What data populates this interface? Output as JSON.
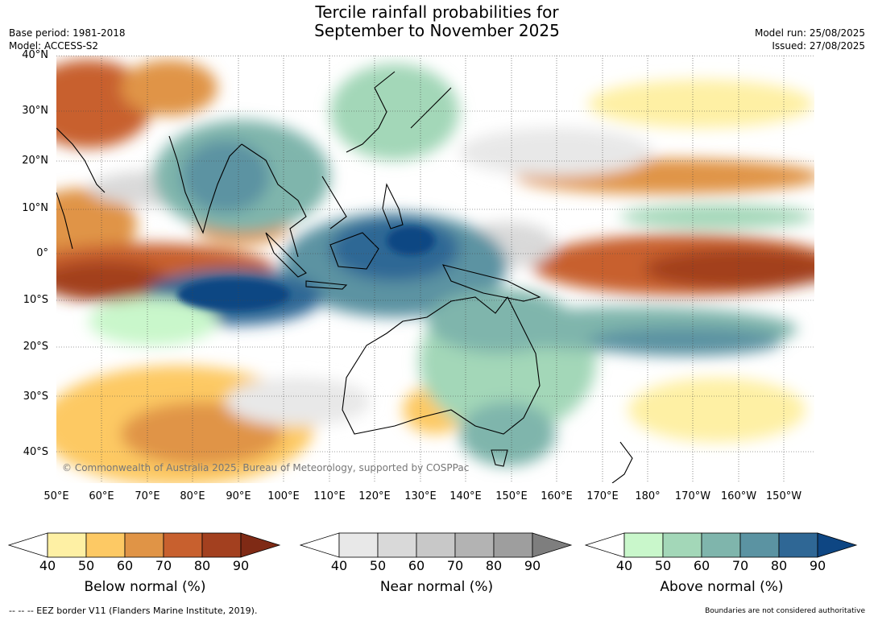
{
  "title": {
    "line1": "Tercile rainfall probabilities for",
    "line2": "September to November 2025"
  },
  "meta_left": {
    "base_period": "Base period: 1981-2018",
    "model": "Model: ACCESS-S2"
  },
  "meta_right": {
    "model_run": "Model run: 25/08/2025",
    "issued": "Issued: 27/08/2025"
  },
  "map": {
    "lat_labels": [
      "40°N",
      "30°N",
      "20°N",
      "10°N",
      "0°",
      "10°S",
      "20°S",
      "30°S",
      "40°S"
    ],
    "lon_labels": [
      "50°E",
      "60°E",
      "70°E",
      "80°E",
      "90°E",
      "100°E",
      "110°E",
      "120°E",
      "130°E",
      "140°E",
      "150°E",
      "160°E",
      "170°E",
      "180°",
      "170°W",
      "160°W",
      "150°W"
    ],
    "copyright": "© Commonwealth of Australia 2025, Bureau of Meteorology, supported by COSPPac",
    "colors": {
      "below": [
        "#ffffff",
        "#fef0a4",
        "#fdc964",
        "#e09446",
        "#c8602e",
        "#a3401f",
        "#7f2a15"
      ],
      "near": [
        "#ffffff",
        "#e8e8e8",
        "#d9d9d9",
        "#c8c8c8",
        "#b3b3b3",
        "#9e9e9e",
        "#7e7e7e"
      ],
      "above": [
        "#ffffff",
        "#c9f7cb",
        "#a3d7b8",
        "#7fb5ac",
        "#5b93a2",
        "#2f6795",
        "#0e4683"
      ]
    }
  },
  "colorbars": [
    {
      "label": "Below normal (%)",
      "ticks": [
        "40",
        "50",
        "60",
        "70",
        "80",
        "90"
      ]
    },
    {
      "label": "Near normal (%)",
      "ticks": [
        "40",
        "50",
        "60",
        "70",
        "80",
        "90"
      ]
    },
    {
      "label": "Above normal (%)",
      "ticks": [
        "40",
        "50",
        "60",
        "70",
        "80",
        "90"
      ]
    }
  ],
  "footer": {
    "left": "--  --  -- EEZ border V11 (Flanders Marine Institute, 2019).",
    "right": "Boundaries are not considered authoritative"
  }
}
